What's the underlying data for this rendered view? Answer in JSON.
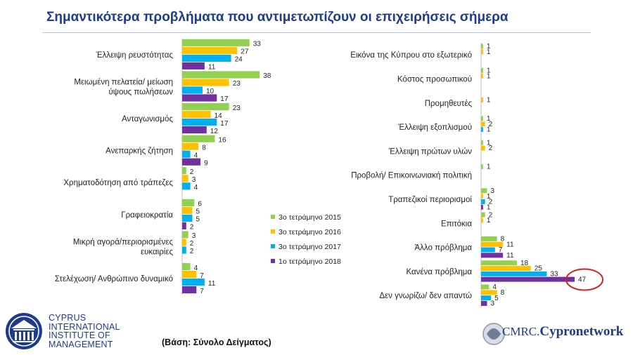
{
  "title": "Σημαντικότερα προβλήματα που αντιμετωπίζουν οι επιχειρήσεις σήμερα",
  "base_note": "(Βάση: Σύνολο Δείγματος)",
  "logos": {
    "cim_lines": [
      "CYPRUS",
      "INTERNATIONAL",
      "INSTITUTE OF",
      "MANAGEMENT"
    ],
    "cmrc_prefix": "CMRC.",
    "cmrc_brand": "Cypronetwork"
  },
  "chart_data": [
    {
      "type": "bar",
      "orientation": "horizontal",
      "categories": [
        "Έλλειψη ρευστότητας",
        "Μειωμένη πελατεία/ μείωση ύψους πωλήσεων",
        "Ανταγωνισμός",
        "Ανεπαρκής ζήτηση",
        "Χρηματοδότηση από τράπεζες",
        "Γραφειοκρατία",
        "Μικρή αγορά/περιορισμένες ευκαιρίες",
        "Στελέχωση/ Ανθρώπινο δυναμικό"
      ],
      "series": [
        {
          "name": "3ο τετράμηνο 2015",
          "color": "#92d050",
          "values": [
            33,
            38,
            23,
            16,
            2,
            6,
            3,
            4
          ]
        },
        {
          "name": "3ο τετράμηνο 2016",
          "color": "#ffc000",
          "values": [
            27,
            23,
            14,
            8,
            3,
            5,
            2,
            7
          ]
        },
        {
          "name": "3ο τετράμηνο 2017",
          "color": "#00b0f0",
          "values": [
            24,
            10,
            17,
            4,
            4,
            5,
            2,
            11
          ]
        },
        {
          "name": "1ο τετράμηνο 2018",
          "color": "#7030a0",
          "values": [
            11,
            17,
            12,
            9,
            null,
            2,
            null,
            7
          ]
        }
      ]
    },
    {
      "type": "bar",
      "orientation": "horizontal",
      "categories": [
        "Εικόνα της Κύπρου στο εξωτερικό",
        "Κόστος προσωπικού",
        "Προμηθευτές",
        "Έλλειψη εξοπλισμού",
        "Έλλειψη πρώτων υλών",
        "Προβολή/ Επικοινωνιακή πολιτική",
        "Τραπεζικοί περιορισμοί",
        "Επιτόκια",
        "Άλλο πρόβλημα",
        "Κανένα πρόβλημα",
        "Δεν γνωρίζω/ δεν απαντώ"
      ],
      "highlight": {
        "series": "1ο τετράμηνο 2018",
        "category": "Κανένα πρόβλημα",
        "value": 47
      },
      "series": [
        {
          "name": "3ο τετράμηνο 2015",
          "color": "#92d050",
          "values": [
            1,
            1,
            null,
            1,
            1,
            1,
            3,
            2,
            8,
            18,
            4
          ]
        },
        {
          "name": "3ο τετράμηνο 2016",
          "color": "#ffc000",
          "values": [
            1,
            1,
            1,
            2,
            2,
            null,
            1,
            1,
            11,
            25,
            8
          ]
        },
        {
          "name": "3ο τετράμηνο 2017",
          "color": "#00b0f0",
          "values": [
            null,
            null,
            null,
            1,
            null,
            null,
            2,
            null,
            7,
            33,
            5
          ]
        },
        {
          "name": "1ο τετράμηνο 2018",
          "color": "#7030a0",
          "values": [
            null,
            null,
            null,
            null,
            null,
            null,
            1,
            null,
            11,
            47,
            3
          ]
        }
      ]
    }
  ]
}
